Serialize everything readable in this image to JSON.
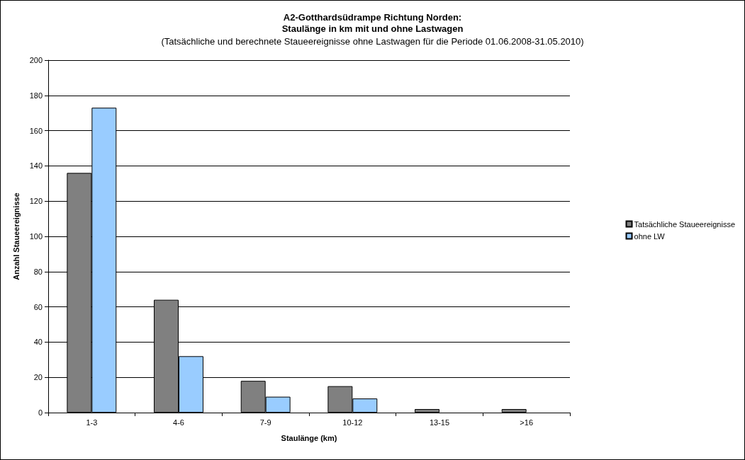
{
  "chart_data": {
    "type": "bar",
    "title": "A2-Gotthardsüdrampe Richtung Norden:\nStaulänge in km mit und ohne Lastwagen",
    "subtitle": "(Tatsächliche und berechnete Staueereignisse ohne Lastwagen für die Periode 01.06.2008-31.05.2010)",
    "xlabel": "Staulänge (km)",
    "ylabel": "Anzahl Staueereignisse",
    "categories": [
      "1-3",
      "4-6",
      "7-9",
      "10-12",
      "13-15",
      ">16"
    ],
    "series": [
      {
        "name": "Tatsächliche Staueereignisse",
        "color": "#808080",
        "values": [
          136,
          64,
          18,
          15,
          2,
          2
        ]
      },
      {
        "name": "ohne LW",
        "color": "#99ccff",
        "values": [
          173,
          32,
          9,
          8,
          0,
          0
        ]
      }
    ],
    "ylim": [
      0,
      200
    ],
    "yticks": [
      0,
      20,
      40,
      60,
      80,
      100,
      120,
      140,
      160,
      180,
      200
    ],
    "grid": "y",
    "legend": "right"
  }
}
